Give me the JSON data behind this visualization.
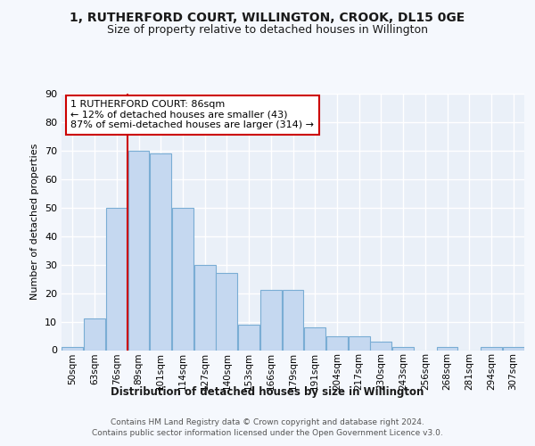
{
  "title1": "1, RUTHERFORD COURT, WILLINGTON, CROOK, DL15 0GE",
  "title2": "Size of property relative to detached houses in Willington",
  "xlabel": "Distribution of detached houses by size in Willington",
  "ylabel": "Number of detached properties",
  "bar_labels": [
    "50sqm",
    "63sqm",
    "76sqm",
    "89sqm",
    "101sqm",
    "114sqm",
    "127sqm",
    "140sqm",
    "153sqm",
    "166sqm",
    "179sqm",
    "191sqm",
    "204sqm",
    "217sqm",
    "230sqm",
    "243sqm",
    "256sqm",
    "268sqm",
    "281sqm",
    "294sqm",
    "307sqm"
  ],
  "bar_values": [
    1,
    11,
    50,
    70,
    69,
    50,
    30,
    27,
    9,
    21,
    21,
    8,
    5,
    5,
    3,
    1,
    0,
    1,
    0,
    1,
    1
  ],
  "bar_color": "#c5d8f0",
  "bar_edge_color": "#7aadd4",
  "annotation_text_line1": "1 RUTHERFORD COURT: 86sqm",
  "annotation_text_line2": "← 12% of detached houses are smaller (43)",
  "annotation_text_line3": "87% of semi-detached houses are larger (314) →",
  "footer1": "Contains HM Land Registry data © Crown copyright and database right 2024.",
  "footer2": "Contains public sector information licensed under the Open Government Licence v3.0.",
  "ylim": [
    0,
    90
  ],
  "yticks": [
    0,
    10,
    20,
    30,
    40,
    50,
    60,
    70,
    80,
    90
  ],
  "background_color": "#f5f8fd",
  "plot_bg_color": "#eaf0f8",
  "grid_color": "#ffffff",
  "vline_color": "#cc0000",
  "vline_x": 2.5,
  "annot_box_edge_color": "#cc0000",
  "annot_box_face_color": "#ffffff"
}
